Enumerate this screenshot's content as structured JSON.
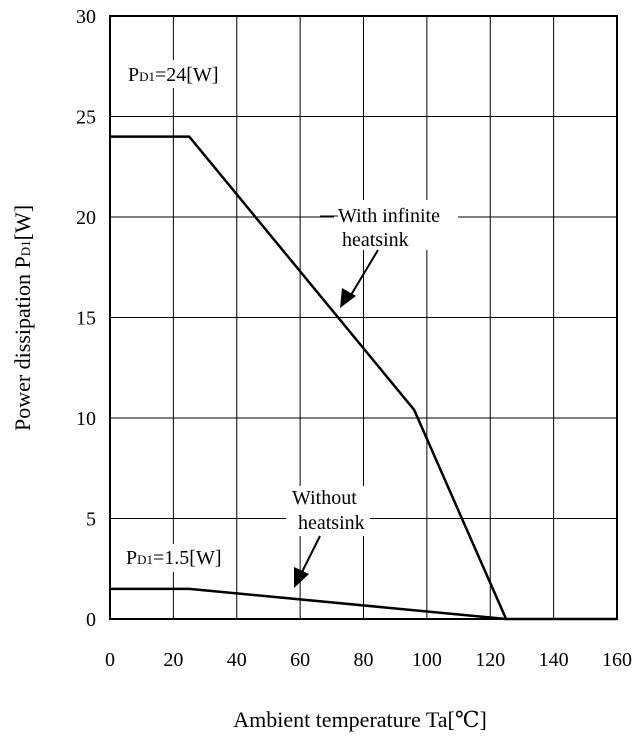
{
  "chart_data": {
    "type": "line",
    "title": "",
    "xlabel": "Ambient temperature Ta[℃]",
    "ylabel": "Power dissipation PD1[W]",
    "ylabel_parts": {
      "main": "Power dissipation P",
      "sub": "D1",
      "unit": "[W]"
    },
    "xlim": [
      0,
      160
    ],
    "ylim": [
      0,
      30
    ],
    "x_ticks": [
      0,
      20,
      40,
      60,
      80,
      100,
      120,
      140,
      160
    ],
    "y_ticks": [
      0,
      5,
      10,
      15,
      20,
      25,
      30
    ],
    "grid": true,
    "series": [
      {
        "label": "With infinite heatsink",
        "x": [
          0,
          25,
          96,
          125,
          160
        ],
        "y": [
          24,
          24,
          10.4,
          0,
          0
        ]
      },
      {
        "label": "Without heatsink",
        "x": [
          0,
          25,
          125
        ],
        "y": [
          1.5,
          1.5,
          0
        ]
      }
    ],
    "annotations": {
      "pd_24": {
        "prefix": "P",
        "sub": "D1",
        "suffix": "=24[W]"
      },
      "pd_15": {
        "prefix": "P",
        "sub": "D1",
        "suffix": "=1.5[W]"
      },
      "infinite": {
        "line1": "With infinite",
        "line2": "heatsink"
      },
      "without": {
        "line1": "Without",
        "line2": "heatsink"
      }
    }
  },
  "colors": {
    "line": "#000000",
    "grid": "#000000",
    "background": "#ffffff"
  }
}
